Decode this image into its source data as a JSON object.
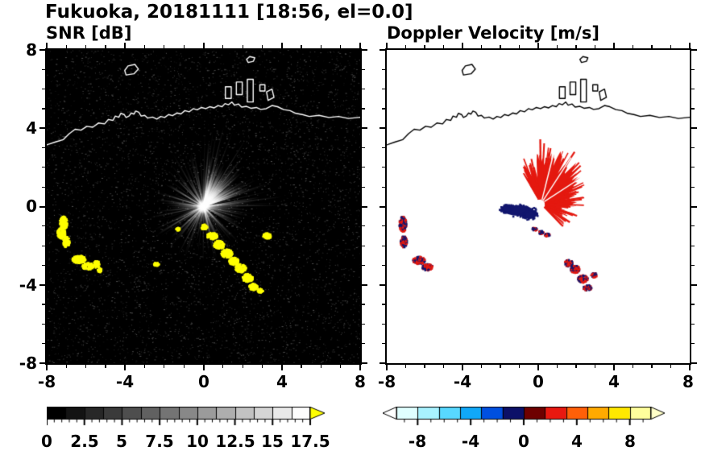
{
  "title": "Fukuoka, 20181111 [18:56, el=0.0]",
  "panels": {
    "snr": {
      "label": "SNR [dB]",
      "x_tick_labels": [
        "-8",
        "-4",
        "0",
        "4",
        "8"
      ],
      "y_tick_labels": [
        "8",
        "4",
        "0",
        "-4",
        "-8"
      ],
      "colorbar": {
        "min": 0,
        "max": 17.5,
        "segments": 14,
        "tick_labels": [
          "0",
          "2.5",
          "5",
          "7.5",
          "10",
          "12.5",
          "15",
          "17.5"
        ],
        "tick_values": [
          0,
          2.5,
          5,
          7.5,
          10,
          12.5,
          15,
          17.5
        ],
        "cmap_start": "#000000",
        "cmap_end": "#fcfcfc",
        "over_color": "#ffff00"
      }
    },
    "doppler": {
      "label": "Doppler Velocity [m/s]",
      "x_tick_labels": [
        "-8",
        "-4",
        "0",
        "4",
        "8"
      ],
      "colorbar": {
        "min": -9.6,
        "max": 9.6,
        "tick_labels": [
          "-8",
          "-4",
          "0",
          "4",
          "8"
        ],
        "tick_values": [
          -8,
          -4,
          0,
          4,
          8
        ],
        "segment_colors": [
          "#e0ffff",
          "#a8f2ff",
          "#58d8ff",
          "#10a8f8",
          "#0050e0",
          "#0c1068",
          "#6e0000",
          "#e81810",
          "#ff6008",
          "#ffaa00",
          "#ffe800",
          "#ffff9c"
        ],
        "under_color": "#ffffff",
        "over_color": "#ffffc8"
      }
    }
  },
  "axes": {
    "xlim": [
      -8,
      8
    ],
    "ylim": [
      -8,
      8
    ],
    "major_ticks": [
      -8,
      -4,
      0,
      4,
      8
    ],
    "minor_step": 1
  },
  "chart_data": [
    {
      "type": "heatmap",
      "title": "SNR [dB]",
      "xlabel": "",
      "ylabel": "",
      "xlim": [
        -8,
        8
      ],
      "ylim": [
        -8,
        8
      ],
      "xticks": [
        -8,
        -4,
        0,
        4,
        8
      ],
      "yticks": [
        -8,
        -4,
        0,
        4,
        8
      ],
      "background": "#000000",
      "colorbar": {
        "range": [
          0,
          17.5
        ],
        "ticks": [
          0,
          2.5,
          5,
          7.5,
          10,
          12.5,
          15,
          17.5
        ],
        "cmap": [
          "#000000",
          "#fcfcfc"
        ],
        "over": "#ffff00"
      },
      "features": {
        "noise_speckle": {
          "count": 5200,
          "gray_min": 12,
          "gray_max": 92
        },
        "radial_echo": {
          "center": [
            0,
            0
          ],
          "fan_deg": [
            18,
            82
          ],
          "fan_radius": [
            1.1,
            2.6
          ],
          "ray_count": 300,
          "ray_radius_max": 3.4
        },
        "clutter_color": "#ffff00",
        "clutter_blobs": [
          [
            -7.15,
            -0.85,
            0.2,
            0.35
          ],
          [
            -7.25,
            -1.35,
            0.22,
            0.3
          ],
          [
            -7.0,
            -1.8,
            0.18,
            0.28
          ],
          [
            -6.35,
            -2.7,
            0.35,
            0.2
          ],
          [
            -5.9,
            -3.05,
            0.3,
            0.18
          ],
          [
            -5.45,
            -2.95,
            0.15,
            0.2
          ],
          [
            -5.3,
            -3.25,
            0.12,
            0.12
          ],
          [
            0.05,
            -1.05,
            0.18,
            0.14
          ],
          [
            0.45,
            -1.5,
            0.28,
            0.18
          ],
          [
            0.8,
            -1.95,
            0.28,
            0.22
          ],
          [
            1.2,
            -2.4,
            0.3,
            0.22
          ],
          [
            1.55,
            -2.8,
            0.25,
            0.2
          ],
          [
            1.9,
            -3.15,
            0.28,
            0.22
          ],
          [
            2.25,
            -3.65,
            0.28,
            0.22
          ],
          [
            2.55,
            -4.1,
            0.22,
            0.18
          ],
          [
            2.9,
            -4.3,
            0.15,
            0.12
          ],
          [
            3.25,
            -1.5,
            0.22,
            0.15
          ],
          [
            -2.4,
            -2.95,
            0.14,
            0.1
          ],
          [
            -1.3,
            -1.15,
            0.1,
            0.08
          ]
        ]
      }
    },
    {
      "type": "heatmap",
      "title": "Doppler Velocity [m/s]",
      "xlabel": "",
      "ylabel": "",
      "xlim": [
        -8,
        8
      ],
      "ylim": [
        -8,
        8
      ],
      "xticks": [
        -8,
        -4,
        0,
        4,
        8
      ],
      "yticks": [
        -8,
        -4,
        0,
        4,
        8
      ],
      "background": "#ffffff",
      "colorbar": {
        "range": [
          -9.6,
          9.6
        ],
        "ticks": [
          -8,
          -4,
          0,
          4,
          8
        ]
      },
      "features": {
        "fan_center": [
          0.15,
          0.15
        ],
        "fan_angles": [
          -48,
          122
        ],
        "positive_color": "#e41910",
        "negative_color": "#12166e",
        "negative_blobs": [
          [
            -1.05,
            -0.2,
            0.75,
            0.28
          ],
          [
            -0.45,
            -0.42,
            0.35,
            0.22
          ],
          [
            -1.68,
            -0.12,
            0.3,
            0.18
          ]
        ],
        "arc_blobs": [
          [
            -0.2,
            -1.15,
            0.14,
            0.09
          ],
          [
            0.15,
            -1.32,
            0.14,
            0.09
          ],
          [
            0.48,
            -1.45,
            0.14,
            0.09
          ]
        ],
        "echo_blobs": [
          [
            -7.15,
            -0.9,
            0.2,
            0.4
          ],
          [
            -7.1,
            -1.8,
            0.18,
            0.3
          ],
          [
            -6.3,
            -2.75,
            0.33,
            0.2
          ],
          [
            -5.85,
            -3.1,
            0.28,
            0.18
          ],
          [
            1.6,
            -2.9,
            0.22,
            0.18
          ],
          [
            1.95,
            -3.2,
            0.25,
            0.2
          ],
          [
            2.35,
            -3.7,
            0.28,
            0.2
          ],
          [
            2.6,
            -4.15,
            0.22,
            0.16
          ],
          [
            2.95,
            -3.5,
            0.16,
            0.12
          ]
        ]
      }
    }
  ],
  "map": {
    "coastline": [
      [
        -8,
        3.15
      ],
      [
        -7.55,
        3.3
      ],
      [
        -7.15,
        3.42
      ],
      [
        -6.85,
        3.72
      ],
      [
        -6.55,
        3.95
      ],
      [
        -6.25,
        3.9
      ],
      [
        -5.95,
        4.1
      ],
      [
        -5.65,
        4.05
      ],
      [
        -5.35,
        4.27
      ],
      [
        -5.05,
        4.22
      ],
      [
        -4.85,
        4.45
      ],
      [
        -4.62,
        4.4
      ],
      [
        -4.5,
        4.62
      ],
      [
        -4.32,
        4.56
      ],
      [
        -4.22,
        4.76
      ],
      [
        -4.05,
        4.7
      ],
      [
        -3.95,
        4.55
      ],
      [
        -3.8,
        4.62
      ],
      [
        -3.68,
        4.78
      ],
      [
        -3.55,
        4.72
      ],
      [
        -3.45,
        4.88
      ],
      [
        -3.3,
        4.82
      ],
      [
        -3.18,
        4.62
      ],
      [
        -3.0,
        4.66
      ],
      [
        -2.85,
        4.52
      ],
      [
        -2.6,
        4.57
      ],
      [
        -2.38,
        4.47
      ],
      [
        -2.18,
        4.6
      ],
      [
        -1.98,
        4.55
      ],
      [
        -1.78,
        4.7
      ],
      [
        -1.58,
        4.64
      ],
      [
        -1.35,
        4.78
      ],
      [
        -1.15,
        4.73
      ],
      [
        -0.95,
        4.9
      ],
      [
        -0.72,
        4.84
      ],
      [
        -0.52,
        5.0
      ],
      [
        -0.32,
        4.94
      ],
      [
        -0.1,
        5.06
      ],
      [
        0.12,
        5.0
      ],
      [
        0.32,
        5.1
      ],
      [
        0.55,
        5.04
      ],
      [
        0.75,
        5.16
      ],
      [
        0.95,
        5.1
      ],
      [
        1.1,
        5.26
      ],
      [
        1.28,
        5.2
      ],
      [
        1.45,
        5.34
      ],
      [
        1.58,
        5.18
      ],
      [
        1.78,
        5.24
      ],
      [
        1.95,
        5.08
      ],
      [
        2.2,
        5.12
      ],
      [
        2.42,
        5.02
      ],
      [
        2.7,
        5.06
      ],
      [
        2.92,
        4.96
      ],
      [
        3.2,
        5.0
      ],
      [
        3.5,
        5.16
      ],
      [
        3.78,
        5.1
      ],
      [
        4.1,
        4.95
      ],
      [
        4.42,
        4.9
      ],
      [
        4.72,
        4.76
      ],
      [
        5.05,
        4.7
      ],
      [
        5.4,
        4.6
      ],
      [
        5.9,
        4.66
      ],
      [
        6.4,
        4.55
      ],
      [
        6.9,
        4.6
      ],
      [
        7.4,
        4.5
      ],
      [
        8,
        4.56
      ]
    ],
    "harbors": [
      [
        [
          1.12,
          5.52
        ],
        [
          1.42,
          5.52
        ],
        [
          1.42,
          6.12
        ],
        [
          1.12,
          6.12
        ]
      ],
      [
        [
          1.68,
          5.72
        ],
        [
          1.98,
          5.72
        ],
        [
          1.98,
          6.36
        ],
        [
          1.68,
          6.36
        ]
      ],
      [
        [
          2.24,
          5.34
        ],
        [
          2.54,
          5.34
        ],
        [
          2.54,
          6.5
        ],
        [
          2.24,
          6.5
        ]
      ],
      [
        [
          2.88,
          5.9
        ],
        [
          3.14,
          5.9
        ],
        [
          3.14,
          6.22
        ],
        [
          2.88,
          6.22
        ]
      ],
      [
        [
          3.3,
          5.42
        ],
        [
          3.6,
          5.58
        ],
        [
          3.5,
          6.0
        ],
        [
          3.22,
          5.86
        ]
      ]
    ],
    "islands": [
      [
        [
          -3.95,
          6.72
        ],
        [
          -3.55,
          6.78
        ],
        [
          -3.32,
          7.02
        ],
        [
          -3.5,
          7.26
        ],
        [
          -3.85,
          7.18
        ],
        [
          -4.02,
          6.95
        ]
      ],
      [
        [
          2.28,
          7.36
        ],
        [
          2.55,
          7.42
        ],
        [
          2.62,
          7.6
        ],
        [
          2.36,
          7.66
        ],
        [
          2.2,
          7.52
        ]
      ]
    ]
  }
}
